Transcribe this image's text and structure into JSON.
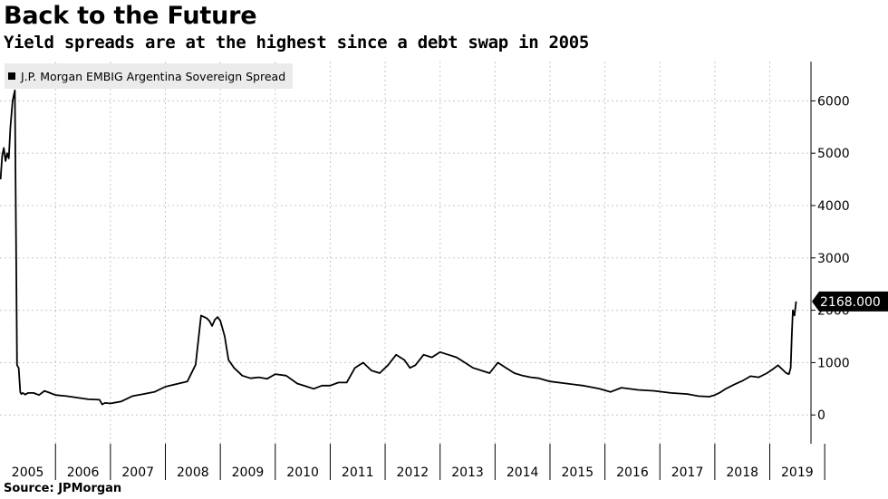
{
  "chart_data": {
    "type": "line",
    "title": "Back to the Future",
    "subtitle": "Yield spreads are at the highest since a debt swap in 2005",
    "source": "Source: JPMorgan",
    "legend": [
      "J.P. Morgan EMBIG Argentina Sovereign Spread"
    ],
    "legend_position": "top-left",
    "y_axis_position": "right",
    "ylim": [
      -550,
      6750
    ],
    "y_ticks": [
      0,
      1000,
      2000,
      3000,
      4000,
      5000,
      6000
    ],
    "x_range": [
      2004.99,
      2019.75
    ],
    "x_ticks": [
      "2005",
      "2006",
      "2007",
      "2008",
      "2009",
      "2010",
      "2011",
      "2012",
      "2013",
      "2014",
      "2015",
      "2016",
      "2017",
      "2018",
      "2019"
    ],
    "grid": true,
    "last_value_label": "2168.000",
    "series": [
      {
        "name": "J.P. Morgan EMBIG Argentina Sovereign Spread",
        "color": "#000000",
        "x": [
          2005.0,
          2005.03,
          2005.06,
          2005.09,
          2005.12,
          2005.15,
          2005.18,
          2005.22,
          2005.26,
          2005.3,
          2005.33,
          2005.36,
          2005.38,
          2005.4,
          2005.42,
          2005.45,
          2005.5,
          2005.6,
          2005.7,
          2005.8,
          2005.9,
          2006.0,
          2006.2,
          2006.4,
          2006.6,
          2006.8,
          2006.85,
          2006.9,
          2007.0,
          2007.2,
          2007.4,
          2007.6,
          2007.8,
          2008.0,
          2008.2,
          2008.4,
          2008.55,
          2008.65,
          2008.75,
          2008.8,
          2008.85,
          2008.9,
          2008.95,
          2009.0,
          2009.08,
          2009.15,
          2009.25,
          2009.4,
          2009.55,
          2009.7,
          2009.85,
          2010.0,
          2010.2,
          2010.4,
          2010.55,
          2010.7,
          2010.85,
          2011.0,
          2011.15,
          2011.3,
          2011.45,
          2011.6,
          2011.75,
          2011.9,
          2012.05,
          2012.2,
          2012.35,
          2012.45,
          2012.55,
          2012.7,
          2012.85,
          2013.0,
          2013.15,
          2013.3,
          2013.45,
          2013.6,
          2013.75,
          2013.9,
          2014.05,
          2014.2,
          2014.35,
          2014.5,
          2014.65,
          2014.8,
          2015.0,
          2015.3,
          2015.6,
          2015.9,
          2016.1,
          2016.3,
          2016.6,
          2016.9,
          2017.2,
          2017.5,
          2017.7,
          2017.9,
          2018.0,
          2018.1,
          2018.2,
          2018.35,
          2018.5,
          2018.65,
          2018.8,
          2018.95,
          2019.05,
          2019.15,
          2019.25,
          2019.3,
          2019.35,
          2019.38,
          2019.4,
          2019.42,
          2019.45,
          2019.48
        ],
        "values": [
          4500,
          4950,
          5100,
          4850,
          5000,
          4900,
          5500,
          6000,
          6200,
          950,
          900,
          430,
          400,
          420,
          410,
          390,
          420,
          420,
          380,
          460,
          420,
          380,
          360,
          330,
          300,
          290,
          200,
          230,
          220,
          260,
          360,
          400,
          440,
          540,
          590,
          640,
          960,
          1900,
          1850,
          1800,
          1700,
          1820,
          1870,
          1800,
          1500,
          1050,
          900,
          750,
          700,
          720,
          690,
          780,
          750,
          600,
          550,
          500,
          560,
          560,
          620,
          620,
          900,
          1000,
          850,
          800,
          950,
          1150,
          1050,
          900,
          950,
          1150,
          1100,
          1200,
          1150,
          1100,
          1000,
          900,
          850,
          800,
          1000,
          900,
          800,
          750,
          720,
          700,
          640,
          600,
          560,
          500,
          440,
          520,
          480,
          460,
          420,
          400,
          360,
          350,
          380,
          430,
          500,
          580,
          650,
          740,
          720,
          800,
          870,
          950,
          850,
          800,
          780,
          900,
          1500,
          2000,
          1900,
          2168
        ]
      }
    ]
  }
}
